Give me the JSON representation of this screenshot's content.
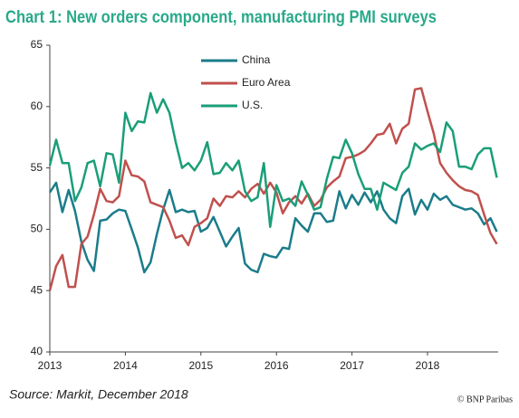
{
  "chart_data": {
    "type": "line",
    "title": "Chart 1: New orders component, manufacturing PMI surveys",
    "source": "Source: Markit, December 2018",
    "credit": "© BNP Paribas",
    "categories": [
      "2013",
      null,
      null,
      null,
      null,
      null,
      null,
      null,
      null,
      null,
      null,
      null,
      "2014",
      null,
      null,
      null,
      null,
      null,
      null,
      null,
      null,
      null,
      null,
      null,
      "2015",
      null,
      null,
      null,
      null,
      null,
      null,
      null,
      null,
      null,
      null,
      null,
      "2016",
      null,
      null,
      null,
      null,
      null,
      null,
      null,
      null,
      null,
      null,
      null,
      "2017",
      null,
      null,
      null,
      null,
      null,
      null,
      null,
      null,
      null,
      null,
      null,
      "2018",
      null,
      null,
      null,
      null,
      null,
      null,
      null,
      null,
      null,
      null,
      null
    ],
    "ylim": [
      40,
      65
    ],
    "yticks": [
      40,
      45,
      50,
      55,
      60,
      65
    ],
    "grid": false,
    "legend": "top",
    "series": [
      {
        "name": "China",
        "color": "#1b7c8a",
        "values": [
          53,
          53.8,
          51.4,
          53.2,
          51.5,
          49,
          47.5,
          46.6,
          50.7,
          50.8,
          51.3,
          51.6,
          51.5,
          50,
          48.5,
          46.5,
          47.3,
          49.6,
          51.6,
          53.2,
          51.4,
          51.6,
          51.4,
          51.5,
          49.8,
          50.1,
          51,
          49.8,
          48.6,
          49.4,
          50.1,
          47.2,
          46.7,
          46.5,
          48,
          47.8,
          47.7,
          48.5,
          48.4,
          50.9,
          50.3,
          49.8,
          51.3,
          51.3,
          50.6,
          50.7,
          53.1,
          51.7,
          52.8,
          52,
          53,
          52.2,
          53.1,
          51.6,
          50.9,
          50.5,
          52.7,
          53.3,
          51.2,
          52.4,
          51.6,
          52.9,
          52.4,
          52.7,
          52,
          51.8,
          51.6,
          51.7,
          51.3,
          50.4,
          50.9,
          49.8
        ]
      },
      {
        "name": "Euro Area",
        "color": "#c0504d",
        "values": [
          45,
          47,
          47.9,
          45.3,
          45.3,
          48.8,
          49.4,
          51.2,
          53.3,
          52.3,
          52.2,
          52.7,
          55.6,
          54.4,
          54.3,
          53.9,
          52.2,
          52,
          51.8,
          50.7,
          49.3,
          49.5,
          48.7,
          50.2,
          50.5,
          50.9,
          52.5,
          51.9,
          52.7,
          52.6,
          53.1,
          52.6,
          53.3,
          53.7,
          52.9,
          53.8,
          53,
          51.3,
          52.2,
          52.7,
          52.1,
          52.9,
          51.9,
          52.4,
          53.4,
          53.9,
          54.3,
          55.8,
          55.9,
          56.1,
          56.4,
          57,
          57.7,
          57.8,
          58.6,
          57,
          58.2,
          58.6,
          61.4,
          61.5,
          59.6,
          57.8,
          55.4,
          54.6,
          54,
          53.5,
          53.2,
          53.1,
          52.8,
          51.2,
          49.7,
          48.8
        ]
      },
      {
        "name": "U.S.",
        "color": "#1a9e78",
        "values": [
          55.2,
          57.3,
          55.4,
          55.4,
          52.3,
          53.4,
          55.4,
          55.6,
          53.5,
          56.2,
          56.1,
          53.8,
          59.5,
          58,
          58.8,
          58.7,
          61.1,
          59.5,
          60.6,
          59.5,
          57.1,
          55,
          55.4,
          54.8,
          55.6,
          57.1,
          54.5,
          54.6,
          55.4,
          54.8,
          55.6,
          53.1,
          52.3,
          52.6,
          55.4,
          50.2,
          53.6,
          52.3,
          52.5,
          51.9,
          53.9,
          52.8,
          51.6,
          51.8,
          54.1,
          55.9,
          55.8,
          57.3,
          56.2,
          54.5,
          53.3,
          53.3,
          51.6,
          53.8,
          53.5,
          53.2,
          54.6,
          55.1,
          57,
          56.5,
          56.8,
          57,
          56.3,
          58.7,
          58,
          55.1,
          55.1,
          54.9,
          56.1,
          56.6,
          56.6,
          54.2
        ]
      }
    ]
  }
}
